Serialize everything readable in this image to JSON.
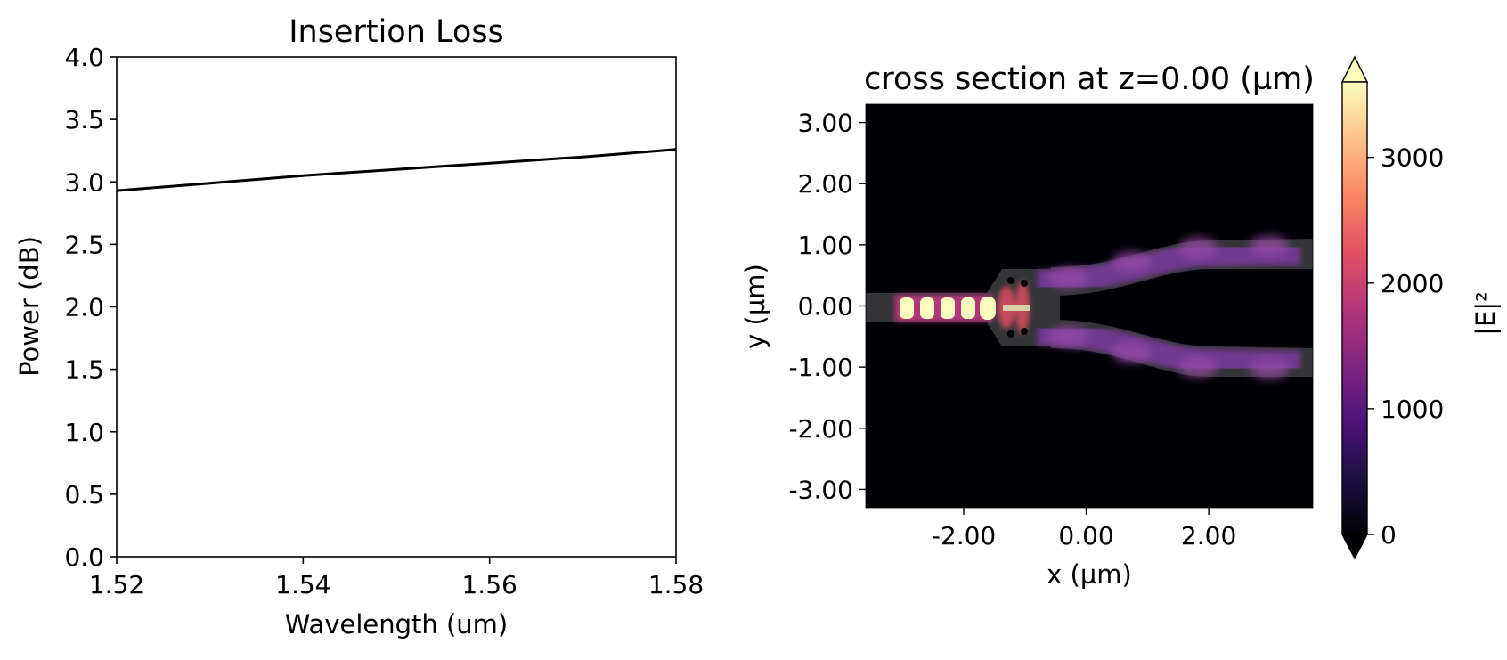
{
  "chart_data": [
    {
      "type": "line",
      "title": "Insertion Loss",
      "xlabel": "Wavelength (um)",
      "ylabel": "Power (dB)",
      "xlim": [
        1.52,
        1.58
      ],
      "ylim": [
        0.0,
        4.0
      ],
      "xticks": [
        "1.52",
        "1.54",
        "1.56",
        "1.58"
      ],
      "yticks": [
        "0.0",
        "0.5",
        "1.0",
        "1.5",
        "2.0",
        "2.5",
        "3.0",
        "3.5",
        "4.0"
      ],
      "grid": false,
      "series": [
        {
          "color": "#000000",
          "x": [
            1.52,
            1.53,
            1.54,
            1.55,
            1.56,
            1.57,
            1.58
          ],
          "y": [
            2.93,
            2.99,
            3.05,
            3.1,
            3.15,
            3.2,
            3.26
          ]
        }
      ]
    },
    {
      "type": "heatmap",
      "title": "cross section at z=0.00 (µm)",
      "xlabel": "x (µm)",
      "ylabel": "y (µm)",
      "xlim": [
        -3.6,
        3.7
      ],
      "ylim": [
        -3.3,
        3.3
      ],
      "xticks": [
        "-2.00",
        "0.00",
        "2.00"
      ],
      "yticks": [
        "-3.00",
        "-2.00",
        "-1.00",
        "0.00",
        "1.00",
        "2.00",
        "3.00"
      ],
      "colorbar": {
        "label": "|E|²",
        "colormap": "magma",
        "range": [
          0,
          3600
        ],
        "extend": "both",
        "ticks": [
          "0",
          "1000",
          "2000",
          "3000"
        ]
      },
      "colormap_stops": [
        "#000004",
        "#1c1044",
        "#4f127b",
        "#812581",
        "#b5367a",
        "#e55064",
        "#fb8761",
        "#fec287",
        "#fcfdbf"
      ]
    }
  ]
}
